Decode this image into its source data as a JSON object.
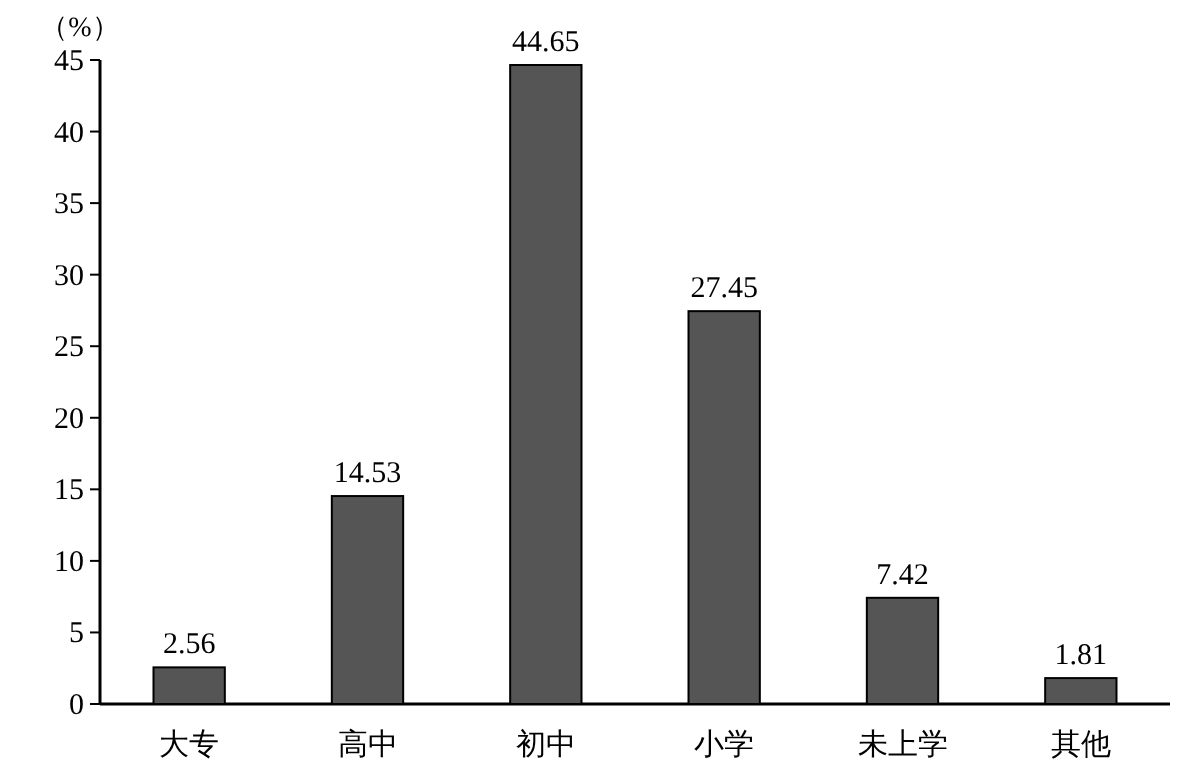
{
  "chart_data": {
    "type": "bar",
    "ylabel": "（%）",
    "categories": [
      "大专",
      "高中",
      "初中",
      "小学",
      "未上学",
      "其他"
    ],
    "values": [
      2.56,
      14.53,
      44.65,
      27.45,
      7.42,
      1.81
    ],
    "color": "#555555",
    "ylim": [
      0,
      45
    ],
    "yticks": [
      0,
      5,
      10,
      15,
      20,
      25,
      30,
      35,
      40,
      45
    ],
    "data_labels": true
  }
}
